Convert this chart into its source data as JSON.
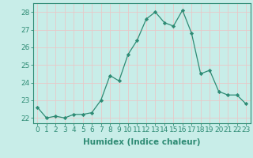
{
  "x": [
    0,
    1,
    2,
    3,
    4,
    5,
    6,
    7,
    8,
    9,
    10,
    11,
    12,
    13,
    14,
    15,
    16,
    17,
    18,
    19,
    20,
    21,
    22,
    23
  ],
  "y": [
    22.6,
    22.0,
    22.1,
    22.0,
    22.2,
    22.2,
    22.3,
    23.0,
    24.4,
    24.1,
    25.6,
    26.4,
    27.6,
    28.0,
    27.4,
    27.2,
    28.1,
    26.8,
    24.5,
    24.7,
    23.5,
    23.3,
    23.3,
    22.8
  ],
  "line_color": "#2e8b74",
  "marker": "D",
  "marker_size": 2.2,
  "bg_color": "#c8ede8",
  "grid_color": "#e8c8c8",
  "xlabel": "Humidex (Indice chaleur)",
  "ylabel_ticks": [
    22,
    23,
    24,
    25,
    26,
    27,
    28
  ],
  "xlim": [
    -0.5,
    23.5
  ],
  "ylim": [
    21.7,
    28.5
  ],
  "tick_label_fontsize": 6.5,
  "xlabel_fontsize": 7.5
}
